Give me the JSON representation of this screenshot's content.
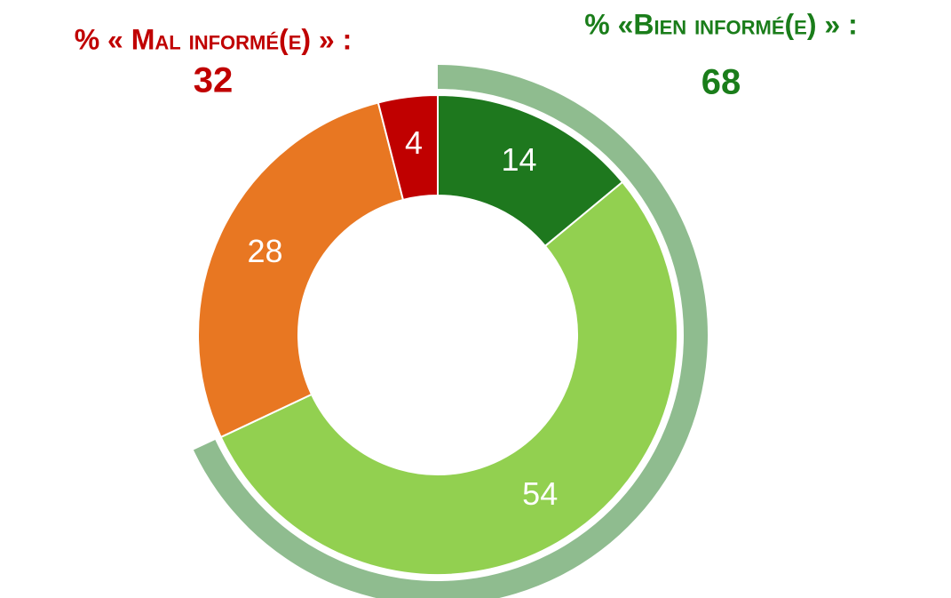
{
  "chart_data": {
    "type": "donut",
    "values": [
      14,
      54,
      28,
      4
    ],
    "colors": [
      "#1e781e",
      "#92d050",
      "#e87722",
      "#c00000"
    ],
    "annotations": [
      {
        "text": "% « Mal informé(e) » :",
        "value": 32,
        "color": "#c00000"
      },
      {
        "text": "% «Bien informé(e) » :",
        "value": 68,
        "color": "#1a7d1a"
      }
    ],
    "highlight_color": "#8fbc8f"
  }
}
